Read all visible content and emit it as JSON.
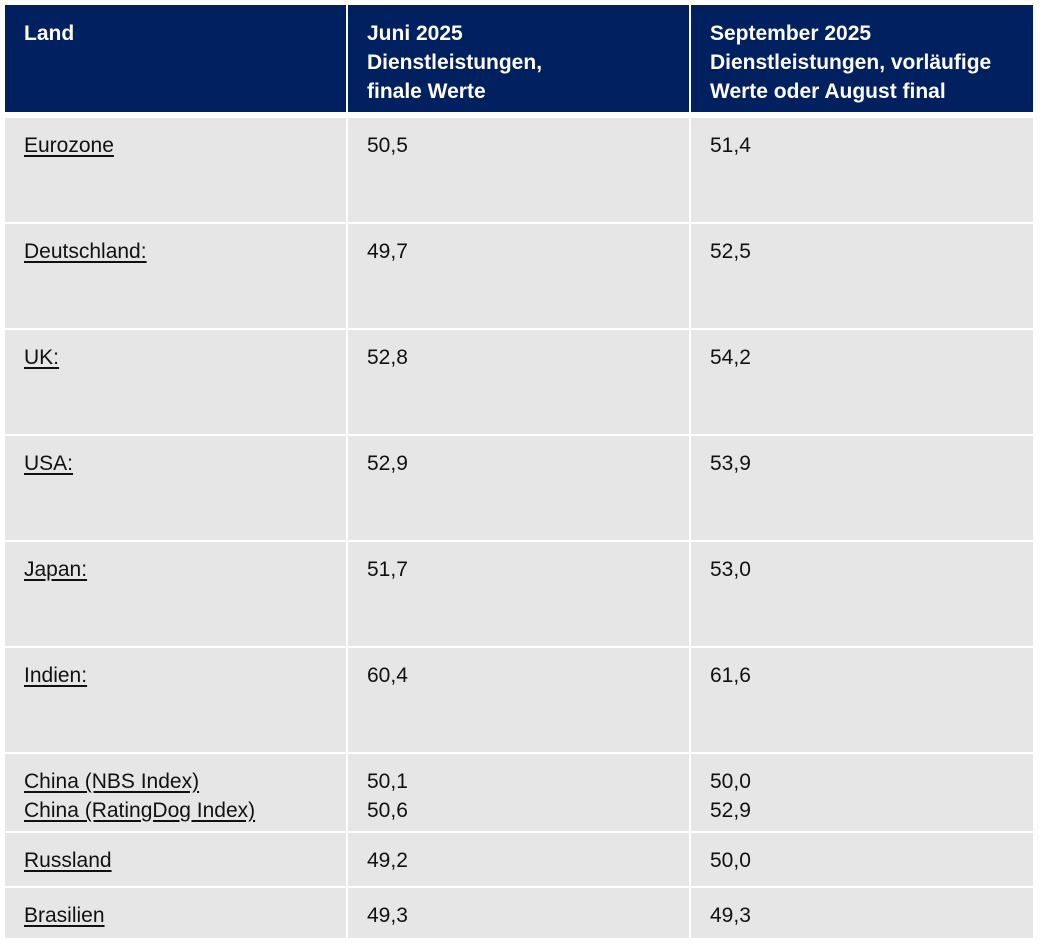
{
  "table": {
    "header": [
      [
        "Land"
      ],
      [
        "Juni 2025",
        "Dienstleistungen,",
        "finale Werte"
      ],
      [
        "September 2025",
        "Dienstleistungen, vorläufige",
        "Werte oder August final"
      ]
    ],
    "rows": [
      [
        [
          "Eurozone"
        ],
        [
          "50,5"
        ],
        [
          "51,4"
        ]
      ],
      [
        [
          "Deutschland:"
        ],
        [
          "49,7"
        ],
        [
          "52,5"
        ]
      ],
      [
        [
          "UK:"
        ],
        [
          "52,8"
        ],
        [
          "54,2"
        ]
      ],
      [
        [
          "USA:"
        ],
        [
          "52,9"
        ],
        [
          "53,9"
        ]
      ],
      [
        [
          "Japan:"
        ],
        [
          "51,7"
        ],
        [
          "53,0"
        ]
      ],
      [
        [
          "Indien:"
        ],
        [
          "60,4"
        ],
        [
          "61,6"
        ]
      ],
      [
        [
          "China (NBS Index)",
          "China (RatingDog Index)"
        ],
        [
          "50,1",
          "50,6"
        ],
        [
          "50,0",
          "52,9"
        ]
      ],
      [
        [
          "Russland"
        ],
        [
          "49,2"
        ],
        [
          "50,0"
        ]
      ],
      [
        [
          "Brasilien"
        ],
        [
          "49,3"
        ],
        [
          "49,3"
        ]
      ]
    ]
  }
}
